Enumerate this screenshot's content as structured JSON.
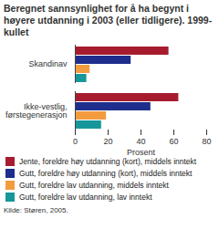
{
  "chart_data": {
    "type": "bar",
    "orientation": "horizontal",
    "title": "Beregnet sannsynlighet for å ha begynt i høyere utdanning i 2003 (eller tidligere). 1999-kullet",
    "categories": [
      "Skandinav",
      "Ikke-vestlig, førstegenerasjon"
    ],
    "series": [
      {
        "name": "Jente, foreldre høy utdanning (kort), middels inntekt",
        "color": "#a61c2e",
        "values": [
          57,
          63
        ]
      },
      {
        "name": "Gutt, foreldre høy utdanning (kort), middels inntekt",
        "color": "#1f2d8c",
        "values": [
          34,
          46
        ]
      },
      {
        "name": "Gutt, foreldre lav utdanning, middels inntekt",
        "color": "#f39c3f",
        "values": [
          9,
          19
        ]
      },
      {
        "name": "Gutt, foreldre lav utdanning, lav inntekt",
        "color": "#17979a",
        "values": [
          7,
          16
        ]
      }
    ],
    "x_label": "Prosent",
    "xlim": [
      0,
      80
    ],
    "xticks": [
      0,
      20,
      40,
      60,
      80
    ],
    "grid": false,
    "legend": "bottom",
    "source": "Kilde: Støren, 2005."
  }
}
